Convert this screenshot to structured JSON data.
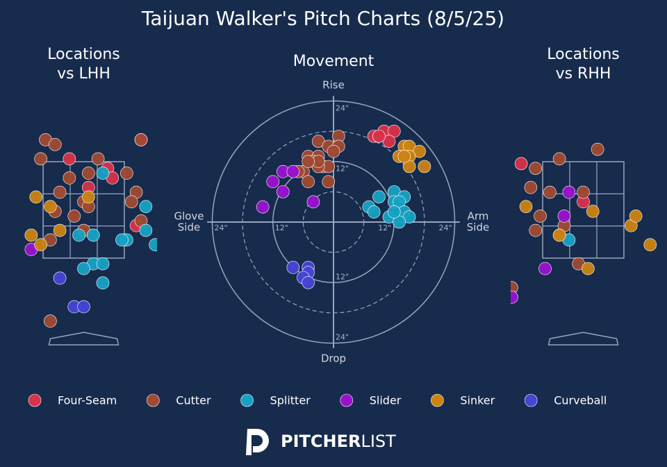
{
  "title": "Taijuan Walker's Pitch Charts (8/5/25)",
  "logo": {
    "bold": "PITCHER",
    "light": "LIST"
  },
  "chart_data": [
    {
      "type": "scatter",
      "title": [
        "Locations",
        "vs LHH"
      ],
      "xlim": [
        -16,
        16
      ],
      "ylim": [
        0,
        53
      ],
      "series": [
        {
          "name": "Four-Seam",
          "color": "#d7334a",
          "x": [
            -3,
            5,
            1,
            6,
            12,
            11
          ],
          "values": [
            40,
            38,
            34,
            36,
            44,
            26
          ]
        },
        {
          "name": "Cutter",
          "color": "#a04a33",
          "x": [
            -8,
            -6,
            -9,
            3,
            1,
            9,
            -3,
            -5,
            11,
            10,
            0,
            1,
            -6,
            -2,
            12,
            0,
            -7,
            -7,
            12
          ],
          "values": [
            44,
            43,
            40,
            40,
            37,
            37,
            36,
            33,
            33,
            31,
            31,
            30,
            29,
            28,
            27,
            25,
            23,
            6,
            44
          ]
        },
        {
          "name": "Splitter",
          "color": "#17a2c4",
          "x": [
            13,
            13,
            15,
            2,
            -1,
            9,
            8,
            4,
            2,
            4,
            0,
            4
          ],
          "values": [
            30,
            25,
            22,
            24,
            24,
            23,
            23,
            37,
            18,
            18,
            17,
            14
          ]
        },
        {
          "name": "Slider",
          "color": "#9a12d0",
          "x": [
            -11
          ],
          "values": [
            21
          ]
        },
        {
          "name": "Sinker",
          "color": "#cc8412",
          "x": [
            -10,
            -7,
            -11,
            -9,
            -5,
            1
          ],
          "values": [
            32,
            30,
            24,
            22,
            25,
            32
          ]
        },
        {
          "name": "Curveball",
          "color": "#4745d6",
          "x": [
            -5,
            -2,
            0
          ],
          "values": [
            15,
            9,
            9
          ]
        }
      ]
    },
    {
      "type": "scatter",
      "title": "Movement",
      "xlabel_left": [
        "Glove",
        "Side"
      ],
      "xlabel_right": [
        "Arm",
        "Side"
      ],
      "ylabel_top": "Rise",
      "ylabel_bottom": "Drop",
      "xlim": [
        -25,
        25
      ],
      "ylim": [
        -25,
        25
      ],
      "rticks": [
        {
          "value": 12,
          "label": "12\""
        },
        {
          "value": 24,
          "label": "24\""
        }
      ],
      "minor_rings": [
        6,
        18
      ],
      "series": [
        {
          "name": "Four-Seam",
          "color": "#d7334a",
          "x": [
            8,
            9,
            10,
            12,
            11,
            9
          ],
          "values": [
            17,
            17,
            18,
            18,
            16,
            17
          ]
        },
        {
          "name": "Cutter",
          "color": "#a04a33",
          "x": [
            1,
            -3,
            -1,
            1,
            -5,
            -3,
            0,
            -4,
            -2,
            -1,
            -3,
            -6,
            -7,
            -5,
            -1,
            -3,
            -5
          ],
          "values": [
            17,
            16,
            15,
            15,
            13,
            13,
            14,
            12,
            11,
            11,
            11,
            10,
            10,
            8,
            8,
            12,
            12
          ]
        },
        {
          "name": "Splitter",
          "color": "#17a2c4",
          "x": [
            9,
            12,
            14,
            7,
            8,
            11,
            12,
            13,
            14,
            15,
            13,
            12
          ],
          "values": [
            5,
            6,
            5,
            3,
            2,
            1,
            4,
            4,
            2,
            1,
            0,
            2
          ]
        },
        {
          "name": "Slider",
          "color": "#9a12d0",
          "x": [
            -10,
            -12,
            -10,
            -14,
            -4,
            -8
          ],
          "values": [
            10,
            8,
            6,
            3,
            4,
            10
          ]
        },
        {
          "name": "Sinker",
          "color": "#cc8412",
          "x": [
            14,
            15,
            17,
            13,
            15,
            15,
            18,
            14
          ],
          "values": [
            15,
            15,
            14,
            13,
            13,
            11,
            11,
            13
          ]
        },
        {
          "name": "Curveball",
          "color": "#4745d6",
          "x": [
            -8,
            -5,
            -5,
            -6,
            -5
          ],
          "values": [
            -9,
            -9,
            -10,
            -11,
            -12
          ]
        }
      ]
    },
    {
      "type": "scatter",
      "title": [
        "Locations",
        "vs RHH"
      ],
      "xlim": [
        -16,
        16
      ],
      "ylim": [
        0,
        53
      ],
      "series": [
        {
          "name": "Four-Seam",
          "color": "#d7334a",
          "x": [
            -13,
            0
          ],
          "values": [
            39,
            31
          ]
        },
        {
          "name": "Cutter",
          "color": "#a04a33",
          "x": [
            -5,
            3,
            -10,
            -11,
            -7,
            0,
            -9,
            -10,
            -4,
            -5,
            -1,
            -15
          ],
          "values": [
            40,
            42,
            38,
            34,
            33,
            33,
            28,
            25,
            26,
            24,
            18,
            13
          ]
        },
        {
          "name": "Splitter",
          "color": "#17a2c4",
          "x": [
            -3
          ],
          "values": [
            23
          ]
        },
        {
          "name": "Slider",
          "color": "#9a12d0",
          "x": [
            -3,
            -4,
            -8,
            -15
          ],
          "values": [
            33,
            28,
            17,
            11
          ]
        },
        {
          "name": "Sinker",
          "color": "#cc8412",
          "x": [
            -12,
            2,
            10,
            11,
            14,
            -5,
            1
          ],
          "values": [
            30,
            29,
            26,
            28,
            22,
            24,
            17
          ]
        }
      ]
    }
  ]
}
